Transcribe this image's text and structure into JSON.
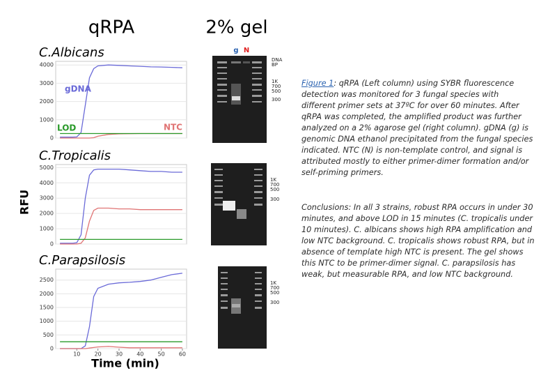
{
  "header": {
    "left": "qRPA",
    "right": "2% gel"
  },
  "axis_labels": {
    "y": "RFU",
    "x": "Time (min)"
  },
  "chart_data": [
    {
      "type": "line",
      "title": "C.Albicans",
      "grid": true,
      "x": [
        2,
        4,
        6,
        8,
        10,
        12,
        14,
        16,
        18,
        20,
        25,
        30,
        35,
        40,
        45,
        50,
        55,
        60
      ],
      "xlim": [
        0,
        62
      ],
      "ylim": [
        0,
        4200
      ],
      "yticks": [
        0,
        1000,
        2000,
        3000,
        4000
      ],
      "series": [
        {
          "name": "gDNA",
          "color": "#6a6ad8",
          "values": [
            50,
            50,
            50,
            50,
            60,
            300,
            1800,
            3300,
            3800,
            3950,
            4000,
            3980,
            3950,
            3930,
            3900,
            3890,
            3870,
            3850
          ]
        },
        {
          "name": "NTC",
          "color": "#e07474",
          "values": [
            0,
            0,
            0,
            0,
            0,
            0,
            0,
            0,
            20,
            100,
            200,
            230,
            240,
            250,
            250,
            250,
            250,
            250
          ]
        },
        {
          "name": "LOD",
          "color": "#2a9a2a",
          "values": [
            250,
            250,
            250,
            250,
            250,
            250,
            250,
            250,
            250,
            250,
            250,
            250,
            250,
            250,
            250,
            250,
            250,
            250
          ]
        }
      ]
    },
    {
      "type": "line",
      "title": "C.Tropicalis",
      "grid": true,
      "x": [
        2,
        4,
        6,
        8,
        10,
        12,
        14,
        16,
        18,
        20,
        25,
        30,
        35,
        40,
        45,
        50,
        55,
        60
      ],
      "xlim": [
        0,
        62
      ],
      "ylim": [
        0,
        5200
      ],
      "yticks": [
        0,
        1000,
        2000,
        3000,
        4000,
        5000
      ],
      "series": [
        {
          "color": "#6a6ad8",
          "values": [
            50,
            50,
            50,
            50,
            80,
            600,
            3000,
            4500,
            4850,
            4900,
            4900,
            4900,
            4850,
            4800,
            4750,
            4750,
            4700,
            4700
          ]
        },
        {
          "color": "#e07474",
          "values": [
            0,
            0,
            0,
            0,
            0,
            50,
            400,
            1500,
            2200,
            2350,
            2350,
            2300,
            2300,
            2250,
            2250,
            2250,
            2250,
            2250
          ]
        },
        {
          "color": "#2a9a2a",
          "values": [
            300,
            300,
            300,
            300,
            300,
            300,
            300,
            300,
            300,
            300,
            300,
            300,
            300,
            300,
            300,
            300,
            300,
            300
          ]
        }
      ]
    },
    {
      "type": "line",
      "title": "C.Parapsilosis",
      "grid": true,
      "x": [
        2,
        4,
        6,
        8,
        10,
        12,
        14,
        16,
        18,
        20,
        25,
        30,
        35,
        40,
        45,
        50,
        55,
        60
      ],
      "xlim": [
        0,
        62
      ],
      "xticks": [
        10,
        20,
        30,
        40,
        50,
        60
      ],
      "ylim": [
        0,
        2900
      ],
      "yticks": [
        0,
        500,
        1000,
        1500,
        2000,
        2500
      ],
      "series": [
        {
          "color": "#6a6ad8",
          "values": [
            0,
            0,
            0,
            0,
            0,
            0,
            100,
            800,
            1900,
            2200,
            2350,
            2400,
            2420,
            2450,
            2500,
            2600,
            2700,
            2750
          ]
        },
        {
          "color": "#e07474",
          "values": [
            0,
            0,
            0,
            0,
            0,
            0,
            0,
            20,
            40,
            60,
            80,
            50,
            30,
            30,
            30,
            30,
            30,
            30
          ]
        },
        {
          "color": "#2a9a2a",
          "values": [
            250,
            250,
            250,
            250,
            250,
            250,
            250,
            250,
            250,
            250,
            250,
            250,
            250,
            250,
            250,
            250,
            250,
            250
          ]
        }
      ]
    }
  ],
  "gels": [
    {
      "lanes": [
        {
          "label": "g",
          "color": "#2a62b0"
        },
        {
          "label": "N",
          "color": "#e02020"
        }
      ],
      "markers": [
        "DNA",
        "BP",
        "1K",
        "700",
        "500",
        "300"
      ]
    },
    {
      "markers": [
        "1K",
        "700",
        "500",
        "300"
      ]
    },
    {
      "markers": [
        "1K",
        "700",
        "500",
        "300"
      ]
    }
  ],
  "caption": {
    "label": "Figure 1",
    "text": ": qRPA (Left column) using SYBR fluorescence detection was monitored for 3 fungal species with different primer sets at 37ºC for over 60 minutes. After qRPA was completed, the amplified product was further analyzed on a 2% agarose gel (right column). gDNA (g) is genomic DNA ethanol precipitated from the fungal species indicated. NTC (N) is non-template control, and signal is attributed mostly to either primer-dimer formation and/or self-priming primers."
  },
  "conclusions": "Conclusions: In all 3 strains, robust RPA occurs in under 30 minutes, and above LOD in 15 minutes (C. tropicalis under 10 minutes). C. albicans shows high RPA amplification and low NTC background. C. tropicalis shows robust RPA, but in absence of template high NTC is present. The gel shows this NTC to be primer-dimer signal. C. parapsilosis has weak, but measurable RPA, and low NTC background."
}
